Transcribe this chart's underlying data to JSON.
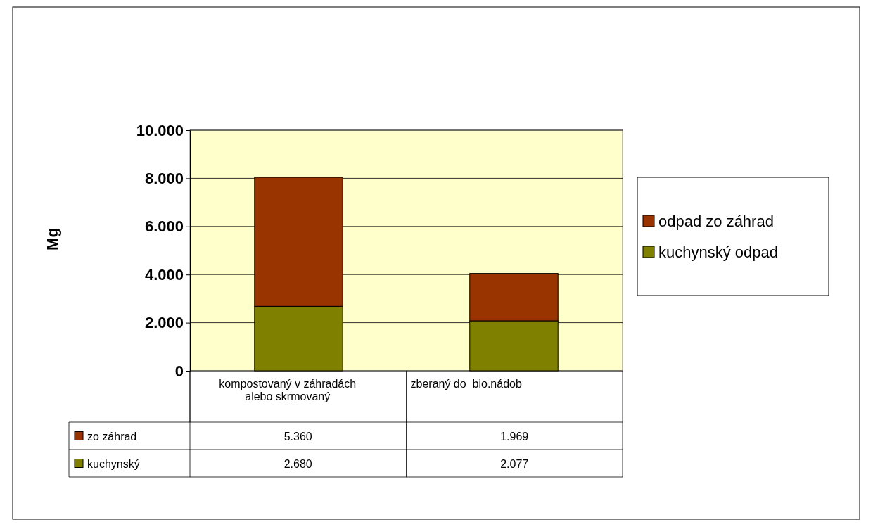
{
  "chart_data": {
    "type": "bar",
    "stacked": true,
    "ylabel": "Mg",
    "categories": [
      "kompostovaný v záhradách alebo skrmovaný",
      "zberaný do  bio.nádob"
    ],
    "series": [
      {
        "name": "kuchynský odpad",
        "color": "#808000",
        "values": [
          2680,
          2077
        ],
        "value_labels": [
          "2.680",
          "2.077"
        ]
      },
      {
        "name": "odpad zo záhrad",
        "color": "#993300",
        "values": [
          5360,
          1969
        ],
        "value_labels": [
          "5.360",
          "1.969"
        ]
      }
    ],
    "ylim": [
      0,
      10000
    ],
    "yticks": [
      0,
      {
        "value": 2000,
        "label": "2.000"
      },
      {
        "value": 4000,
        "label": "4.000"
      },
      {
        "value": 6000,
        "label": "6.000"
      },
      {
        "value": 8000,
        "label": "8.000"
      },
      {
        "value": 10000,
        "label": "10.000"
      }
    ],
    "grid": "y",
    "legend": "right",
    "annotations": [
      "kuchynský",
      "zo záhrad"
    ]
  }
}
